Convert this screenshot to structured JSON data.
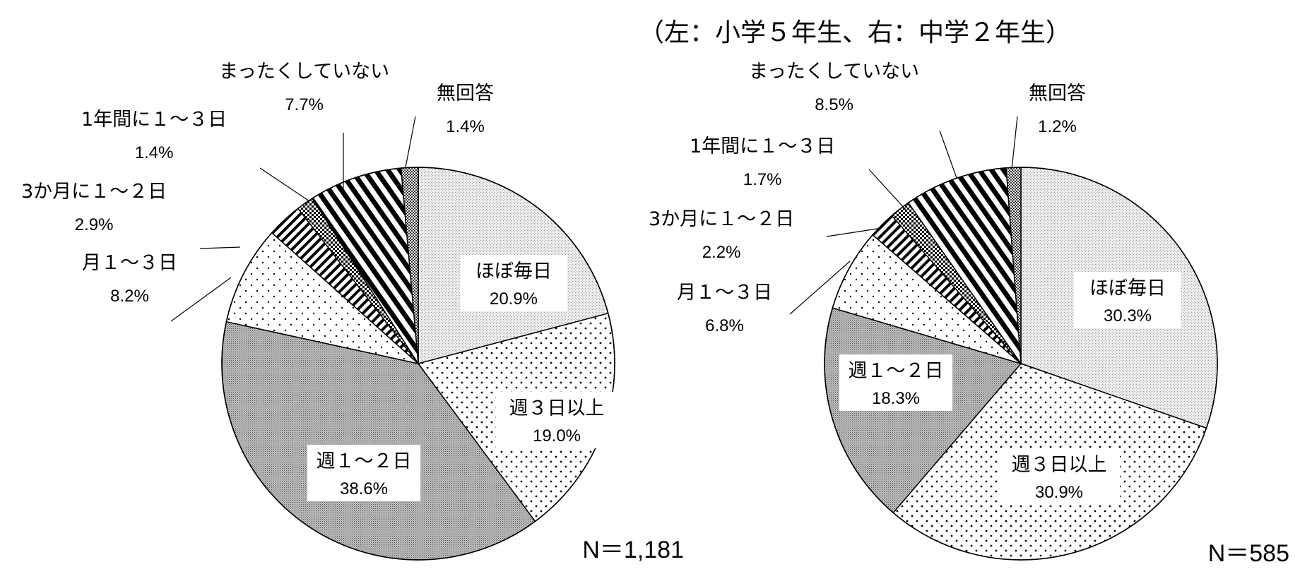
{
  "caption": "（左：小学５年生、右：中学２年生）",
  "chart_data": [
    {
      "type": "pie",
      "n_label": "N＝1,181",
      "slices": [
        {
          "label": "ほぼ毎日",
          "value": 20.9,
          "pct": "20.9%",
          "pattern": "light-gray"
        },
        {
          "label": "週３日以上",
          "value": 19.0,
          "pct": "19.0%",
          "pattern": "dots"
        },
        {
          "label": "週１～２日",
          "value": 38.6,
          "pct": "38.6%",
          "pattern": "dark-gray"
        },
        {
          "label": "月１～３日",
          "value": 8.2,
          "pct": "8.2%",
          "pattern": "sparse-dots"
        },
        {
          "label": "3か月に１～２日",
          "value": 2.9,
          "pct": "2.9%",
          "pattern": "diagonal-stripes"
        },
        {
          "label": "1年間に１～３日",
          "value": 1.4,
          "pct": "1.4%",
          "pattern": "checker"
        },
        {
          "label": "まったくしていない",
          "value": 7.7,
          "pct": "7.7%",
          "pattern": "thick-diagonal-stripes"
        },
        {
          "label": "無回答",
          "value": 1.4,
          "pct": "1.4%",
          "pattern": "fine-checker"
        }
      ]
    },
    {
      "type": "pie",
      "n_label": "N＝585",
      "slices": [
        {
          "label": "ほぼ毎日",
          "value": 30.3,
          "pct": "30.3%",
          "pattern": "light-gray"
        },
        {
          "label": "週３日以上",
          "value": 30.9,
          "pct": "30.9%",
          "pattern": "dots"
        },
        {
          "label": "週１～２日",
          "value": 18.3,
          "pct": "18.3%",
          "pattern": "dark-gray"
        },
        {
          "label": "月１～３日",
          "value": 6.8,
          "pct": "6.8%",
          "pattern": "sparse-dots"
        },
        {
          "label": "3か月に１～２日",
          "value": 2.2,
          "pct": "2.2%",
          "pattern": "diagonal-stripes"
        },
        {
          "label": "1年間に１～３日",
          "value": 1.7,
          "pct": "1.7%",
          "pattern": "checker"
        },
        {
          "label": "まったくしていない",
          "value": 8.5,
          "pct": "8.5%",
          "pattern": "thick-diagonal-stripes"
        },
        {
          "label": "無回答",
          "value": 1.2,
          "pct": "1.2%",
          "pattern": "fine-checker"
        }
      ]
    }
  ]
}
